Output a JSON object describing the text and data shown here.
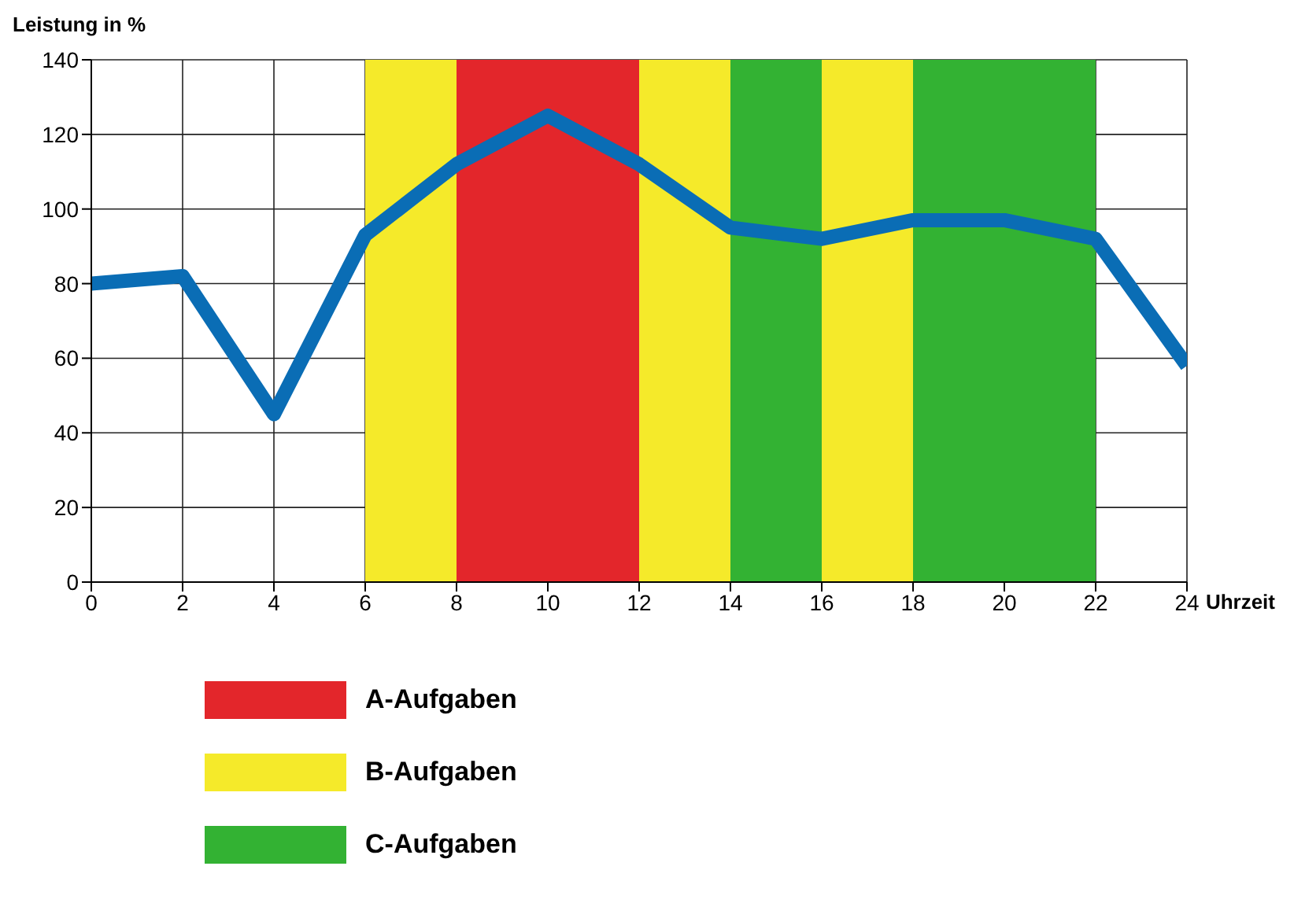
{
  "chart_data": {
    "type": "line",
    "ylabel": "Leistung in %",
    "xlabel": "Uhrzeit",
    "x": [
      0,
      2,
      4,
      6,
      8,
      10,
      12,
      14,
      16,
      18,
      20,
      22,
      24
    ],
    "series": [
      {
        "color": "#0a6db5",
        "values": [
          80,
          82,
          45,
          93,
          112,
          125,
          112,
          95,
          92,
          97,
          97,
          92,
          58
        ]
      }
    ],
    "xlim": [
      0,
      24
    ],
    "xticks": [
      0,
      2,
      4,
      6,
      8,
      10,
      12,
      14,
      16,
      18,
      20,
      22,
      24
    ],
    "ylim": [
      0,
      140
    ],
    "yticks": [
      0,
      20,
      40,
      60,
      80,
      100,
      120,
      140
    ],
    "grid": true,
    "marker": "none",
    "annotations": [
      "A-Aufgaben",
      "B-Aufgaben",
      "C-Aufgaben"
    ],
    "bands": [
      {
        "axis": "x",
        "from": 8,
        "to": 12,
        "color": "#e3262b"
      },
      {
        "axis": "x",
        "from": 6,
        "to": 8,
        "color": "#f5ea2a"
      },
      {
        "axis": "x",
        "from": 12,
        "to": 14,
        "color": "#f5ea2a"
      },
      {
        "axis": "x",
        "from": 16,
        "to": 18,
        "color": "#f5ea2a"
      },
      {
        "axis": "x",
        "from": 14,
        "to": 16,
        "color": "#33b233"
      },
      {
        "axis": "x",
        "from": 18,
        "to": 22,
        "color": "#33b233"
      }
    ]
  }
}
